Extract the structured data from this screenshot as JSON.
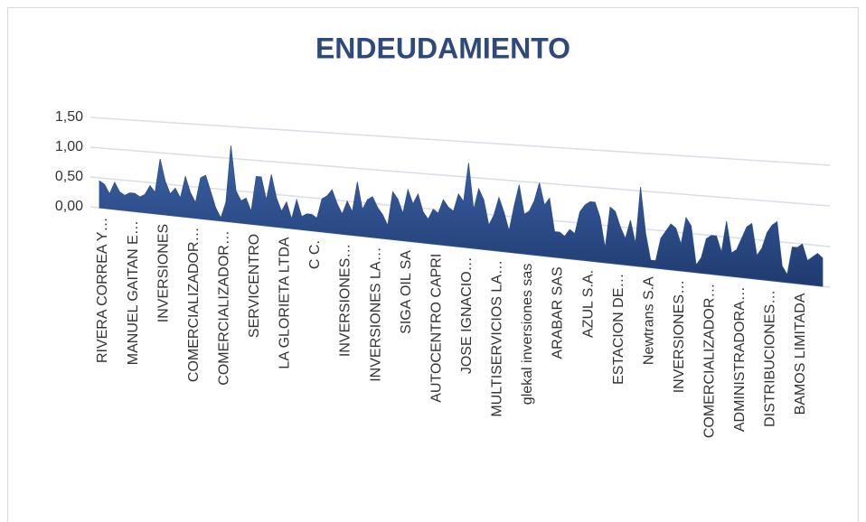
{
  "chart_data": {
    "type": "area",
    "title": "ENDEUDAMIENTO",
    "color": "#2f4f8c",
    "grid": true,
    "ylim": [
      0,
      1.5
    ],
    "yticks": [
      {
        "value": 0,
        "label": "0,00"
      },
      {
        "value": 0.5,
        "label": "0,50"
      },
      {
        "value": 1,
        "label": "1,00"
      },
      {
        "value": 1.5,
        "label": "1,50"
      }
    ],
    "categories": [
      "RIVERA CORREA Y…",
      null,
      null,
      null,
      null,
      null,
      "MANUEL GAITAN E…",
      null,
      null,
      null,
      null,
      null,
      "INVERSIONES",
      null,
      null,
      null,
      null,
      null,
      "COMERCIALIZADOR…",
      null,
      null,
      null,
      null,
      null,
      "COMERCIALIZADOR…",
      null,
      null,
      null,
      null,
      null,
      "SERVICENTRO",
      null,
      null,
      null,
      null,
      null,
      "LA GLORIETA LTDA",
      null,
      null,
      null,
      null,
      null,
      "C C.",
      null,
      null,
      null,
      null,
      null,
      "INVERSIONES…",
      null,
      null,
      null,
      null,
      null,
      "INVERSIONES LA…",
      null,
      null,
      null,
      null,
      null,
      "SIGA OIL SA",
      null,
      null,
      null,
      null,
      null,
      "AUTOCENTRO CAPRI",
      null,
      null,
      null,
      null,
      null,
      "JOSE IGNACIO…",
      null,
      null,
      null,
      null,
      null,
      "MULTISERVICIOS LA…",
      null,
      null,
      null,
      null,
      null,
      "glekal inversiones sas",
      null,
      null,
      null,
      null,
      null,
      "ARABAR SAS",
      null,
      null,
      null,
      null,
      null,
      "AZUL S.A.",
      null,
      null,
      null,
      null,
      null,
      "ESTACION DE…",
      null,
      null,
      null,
      null,
      null,
      "Newtrans S.A",
      null,
      null,
      null,
      null,
      null,
      "INVERSIONES…",
      null,
      null,
      null,
      null,
      null,
      "COMERCIALIZADOR…",
      null,
      null,
      null,
      null,
      null,
      "ADMINISTRADORA…",
      null,
      null,
      null,
      null,
      null,
      "DISTRIBUCIONES…",
      null,
      null,
      null,
      null,
      null,
      "BAMOS LIMITADA",
      null,
      null,
      null,
      null,
      null
    ],
    "values": [
      0.45,
      0.4,
      0.25,
      0.45,
      0.3,
      0.25,
      0.3,
      0.3,
      0.25,
      0.3,
      0.45,
      0.35,
      0.9,
      0.55,
      0.35,
      0.45,
      0.3,
      0.65,
      0.4,
      0.25,
      0.65,
      0.7,
      0.45,
      0.2,
      0.05,
      0.3,
      1.2,
      0.5,
      0.35,
      0.4,
      0.2,
      0.75,
      0.75,
      0.4,
      0.8,
      0.45,
      0.25,
      0.4,
      0.15,
      0.45,
      0.2,
      0.25,
      0.25,
      0.2,
      0.5,
      0.55,
      0.65,
      0.45,
      0.3,
      0.5,
      0.35,
      0.8,
      0.4,
      0.55,
      0.6,
      0.45,
      0.35,
      0.2,
      0.7,
      0.6,
      0.4,
      0.75,
      0.55,
      0.7,
      0.45,
      0.35,
      0.5,
      0.45,
      0.65,
      0.55,
      0.5,
      0.75,
      0.65,
      1.2,
      0.55,
      0.85,
      0.7,
      0.35,
      0.5,
      0.75,
      0.55,
      0.3,
      0.65,
      0.95,
      0.55,
      0.6,
      0.75,
      1.0,
      0.7,
      0.8,
      0.35,
      0.35,
      0.3,
      0.4,
      0.35,
      0.65,
      0.75,
      0.8,
      0.8,
      0.6,
      0.2,
      0.75,
      0.7,
      0.5,
      0.35,
      0.6,
      0.3,
      1.05,
      0.45,
      0.1,
      0.1,
      0.4,
      0.5,
      0.6,
      0.55,
      0.35,
      0.7,
      0.6,
      0.1,
      0.2,
      0.45,
      0.5,
      0.5,
      0.3,
      0.7,
      0.3,
      0.35,
      0.5,
      0.65,
      0.7,
      0.3,
      0.4,
      0.6,
      0.7,
      0.75,
      0.2,
      0.1,
      0.45,
      0.45,
      0.5,
      0.3,
      0.35,
      0.4,
      0.35
    ]
  }
}
